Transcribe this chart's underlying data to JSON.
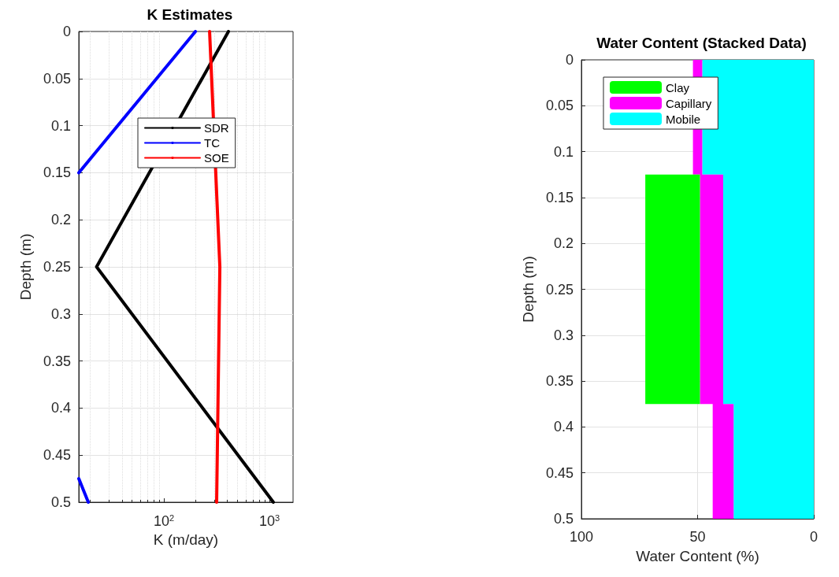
{
  "chart_data": [
    {
      "type": "line",
      "title": "K Estimates",
      "xlabel": "K (m/day)",
      "ylabel": "Depth (m)",
      "orientation": "horizontal",
      "log": "x",
      "x": [
        0,
        0.25,
        0.5
      ],
      "series": [
        {
          "name": "SDR",
          "color": "#000000",
          "values": [
            409,
            23,
            1090
          ]
        },
        {
          "name": "TC",
          "color": "#0000ff",
          "x": [
            0,
            0.15,
            0.3,
            0.475,
            0.5
          ],
          "values": [
            199,
            15.6,
            null,
            15.6,
            19.2
          ]
        },
        {
          "name": "SOE",
          "color": "#ff0000",
          "values": [
            271,
            339,
            316
          ]
        }
      ],
      "xlim": [
        15.6,
        1675
      ],
      "xticks": [
        {
          "value": 100,
          "label": "10$^{2}$"
        },
        {
          "value": 1000,
          "label": "10$^{3}$"
        }
      ],
      "ylim": [
        0.5,
        0
      ],
      "yticks": [
        0,
        0.05,
        0.1,
        0.15,
        0.2,
        0.25,
        0.3,
        0.35,
        0.4,
        0.45,
        0.5
      ],
      "grid": true,
      "legend": "top"
    },
    {
      "type": "area",
      "title": "Water Content (Stacked Data)",
      "xlabel": "Water Content (%)",
      "ylabel": "Depth (m)",
      "orientation": "horizontal",
      "stacked": true,
      "x": [
        0,
        0.125,
        0.125,
        0.375,
        0.375,
        0.5
      ],
      "series": [
        {
          "name": "Mobile",
          "color": "#00ffff",
          "values": [
            48,
            48,
            39,
            39,
            34.5,
            34.5
          ]
        },
        {
          "name": "Capillary",
          "color": "#ff00ff",
          "values": [
            4,
            4,
            10,
            10,
            9,
            9
          ]
        },
        {
          "name": "Clay",
          "color": "#00ff00",
          "values": [
            0,
            0,
            23.5,
            23.5,
            0,
            0
          ]
        }
      ],
      "xlim": [
        100,
        0
      ],
      "xticks": [
        100,
        50,
        0
      ],
      "ylim": [
        0.5,
        0
      ],
      "yticks": [
        0,
        0.05,
        0.1,
        0.15,
        0.2,
        0.25,
        0.3,
        0.35,
        0.4,
        0.45,
        0.5
      ],
      "grid": true,
      "legend": "top left"
    }
  ]
}
